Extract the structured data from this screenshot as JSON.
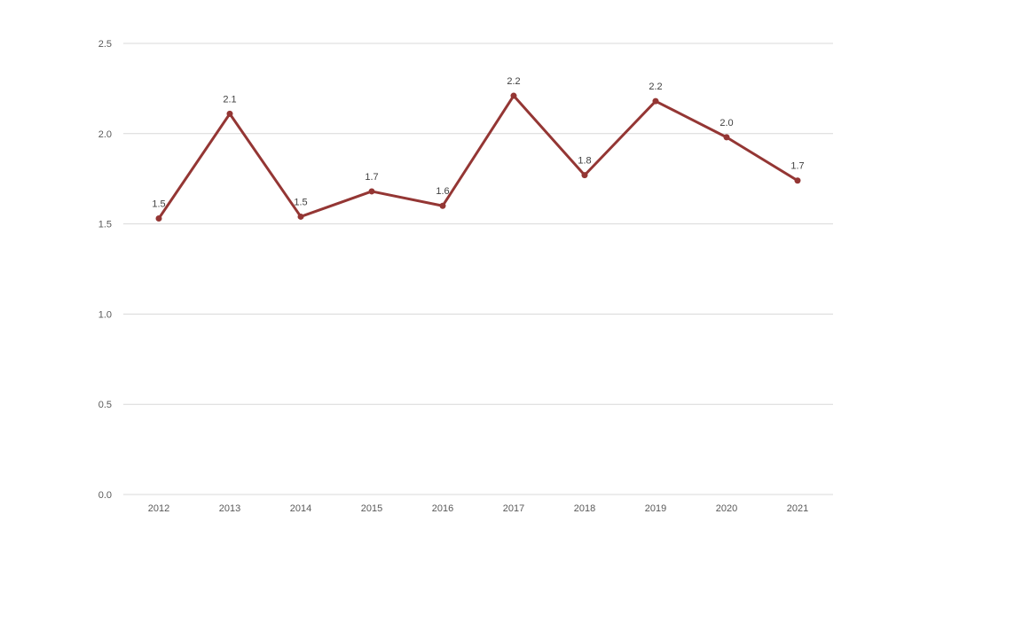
{
  "chart_data": {
    "type": "line",
    "title": "",
    "xlabel": "",
    "ylabel": "",
    "categories": [
      "2012",
      "2013",
      "2014",
      "2015",
      "2016",
      "2017",
      "2018",
      "2019",
      "2020",
      "2021"
    ],
    "series": [
      {
        "values": [
          1.53,
          2.11,
          1.54,
          1.68,
          1.6,
          2.21,
          1.77,
          2.18,
          1.98,
          1.74
        ],
        "data_labels": [
          "1.5",
          "2.1",
          "1.5",
          "1.7",
          "1.6",
          "2.2",
          "1.8",
          "2.2",
          "2.0",
          "1.7"
        ]
      }
    ],
    "ylim": [
      0,
      2.5
    ],
    "y_ticks": [
      "0.0",
      "0.5",
      "1.0",
      "1.5",
      "2.0",
      "2.5"
    ],
    "grid": true,
    "legend": "none",
    "colors": {
      "line": "#943634",
      "grid": "#d9d9d9",
      "tick_text": "#595959",
      "label_text": "#404040"
    }
  }
}
